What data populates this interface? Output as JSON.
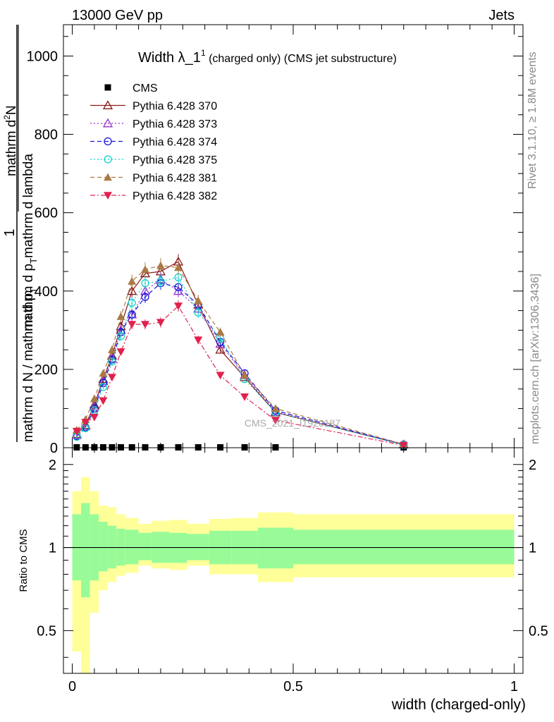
{
  "header": {
    "left_label": "13000 GeV pp",
    "right_label": "Jets",
    "rivet_label": "Rivet 3.1.10, ≥ 1.8M events",
    "site_label": "mcplots.cern.ch [arXiv:1306.3436]",
    "watermark": "CMS_2021_I1920187"
  },
  "title": {
    "main": "Width λ_1",
    "superscript": "1",
    "sub": " (charged only) (CMS jet substructure)"
  },
  "colors": {
    "CMS": "#000000",
    "370": "#8b1a1a",
    "373": "#9932cc",
    "374": "#1515d8",
    "375": "#14d2c8",
    "381": "#aa7a44",
    "382": "#e0204e",
    "band_inner": "#98fb98",
    "band_outer": "#ffff99"
  },
  "chart_data": [
    {
      "type": "line",
      "panel": "main",
      "ylabel": {
        "numerator": "1",
        "denominator": "mathrm d N / mathrm d p",
        "denominator_sub": "T",
        "right_part_main": "mathrm d",
        "right_part_sub": "T",
        "right_part_rest": "mathrm d lambda",
        "right_numerator": "mathrm d",
        "right_numerator_sup": "2",
        "right_numerator_rest": "N",
        "line1": "mathrm d",
        "line1_rest": "N",
        "line2_main": "mathrm d p",
        "line2_sub": "T",
        "line2_rest": "mathrm d lambda"
      },
      "xlim": [
        -0.02,
        1.02
      ],
      "ylim": [
        0,
        1080
      ],
      "yticks": [
        0,
        200,
        400,
        600,
        800,
        1000
      ],
      "ytick_labels": [
        "0",
        "200",
        "400",
        "600",
        "800",
        "1000"
      ],
      "series": [
        {
          "name": "CMS",
          "key": "CMS",
          "marker": "square",
          "x": [
            0.01,
            0.03,
            0.05,
            0.07,
            0.09,
            0.11,
            0.135,
            0.165,
            0.2,
            0.24,
            0.285,
            0.335,
            0.39,
            0.46,
            0.75
          ],
          "y": [
            1,
            1,
            1,
            1,
            1,
            1,
            1,
            1,
            1,
            1,
            1,
            1,
            1,
            1,
            1
          ]
        },
        {
          "name": "Pythia 6.428 370",
          "key": "370",
          "marker": "triangle-up-open",
          "dash": "",
          "x": [
            0.01,
            0.03,
            0.05,
            0.07,
            0.09,
            0.11,
            0.135,
            0.165,
            0.2,
            0.24,
            0.285,
            0.335,
            0.39,
            0.46,
            0.75
          ],
          "y": [
            35,
            58,
            110,
            175,
            235,
            310,
            400,
            445,
            450,
            475,
            365,
            250,
            180,
            90,
            8
          ]
        },
        {
          "name": "Pythia 6.428 373",
          "key": "373",
          "marker": "triangle-up-open",
          "dash": "2,3",
          "x": [
            0.01,
            0.03,
            0.05,
            0.07,
            0.09,
            0.11,
            0.135,
            0.165,
            0.2,
            0.24,
            0.285,
            0.335,
            0.39,
            0.46,
            0.75
          ],
          "y": [
            32,
            55,
            105,
            170,
            228,
            300,
            340,
            400,
            430,
            400,
            355,
            265,
            185,
            92,
            8
          ]
        },
        {
          "name": "Pythia 6.428 374",
          "key": "374",
          "marker": "circle-open",
          "dash": "6,4",
          "x": [
            0.01,
            0.03,
            0.05,
            0.07,
            0.09,
            0.11,
            0.135,
            0.165,
            0.2,
            0.24,
            0.285,
            0.335,
            0.39,
            0.46,
            0.75
          ],
          "y": [
            30,
            52,
            100,
            165,
            225,
            295,
            340,
            385,
            420,
            410,
            365,
            270,
            190,
            95,
            8
          ]
        },
        {
          "name": "Pythia 6.428 375",
          "key": "375",
          "marker": "circle-open",
          "dash": "2,3",
          "x": [
            0.01,
            0.03,
            0.05,
            0.07,
            0.09,
            0.11,
            0.135,
            0.165,
            0.2,
            0.24,
            0.285,
            0.335,
            0.39,
            0.46,
            0.75
          ],
          "y": [
            28,
            50,
            95,
            155,
            220,
            285,
            370,
            420,
            425,
            435,
            345,
            280,
            175,
            90,
            7
          ]
        },
        {
          "name": "Pythia 6.428 381",
          "key": "381",
          "marker": "triangle-up-filled",
          "dash": "6,4",
          "x": [
            0.01,
            0.03,
            0.05,
            0.07,
            0.09,
            0.11,
            0.135,
            0.165,
            0.2,
            0.24,
            0.285,
            0.335,
            0.39,
            0.46,
            0.75
          ],
          "y": [
            45,
            72,
            125,
            190,
            250,
            335,
            425,
            455,
            465,
            460,
            375,
            295,
            185,
            100,
            9
          ]
        },
        {
          "name": "Pythia 6.428 382",
          "key": "382",
          "marker": "triangle-down-filled",
          "dash": "7,3,2,3",
          "x": [
            0.01,
            0.03,
            0.05,
            0.07,
            0.09,
            0.11,
            0.135,
            0.165,
            0.2,
            0.24,
            0.285,
            0.335,
            0.39,
            0.46,
            0.75
          ],
          "y": [
            42,
            65,
            78,
            120,
            180,
            245,
            315,
            315,
            320,
            362,
            275,
            185,
            130,
            70,
            6
          ]
        }
      ]
    },
    {
      "type": "area",
      "panel": "ratio",
      "ylabel": "Ratio to CMS",
      "xlabel": "width (charged-only)",
      "xlim": [
        -0.02,
        1.02
      ],
      "ylim": [
        0.35,
        2.3
      ],
      "log_scale": true,
      "yticks": [
        0.5,
        1,
        2
      ],
      "ytick_labels": [
        "0.5",
        "1",
        "2"
      ],
      "xticks": [
        0,
        0.5,
        1
      ],
      "xtick_labels": [
        "0",
        "0.5",
        "1"
      ],
      "bins": [
        {
          "x0": 0.0,
          "x1": 0.02,
          "inner": [
            0.76,
            1.32
          ],
          "outer": [
            0.42,
            1.6
          ]
        },
        {
          "x0": 0.02,
          "x1": 0.04,
          "inner": [
            0.66,
            1.45
          ],
          "outer": [
            0.34,
            1.8
          ]
        },
        {
          "x0": 0.04,
          "x1": 0.06,
          "inner": [
            0.76,
            1.32
          ],
          "outer": [
            0.58,
            1.6
          ]
        },
        {
          "x0": 0.06,
          "x1": 0.08,
          "inner": [
            0.82,
            1.24
          ],
          "outer": [
            0.7,
            1.42
          ]
        },
        {
          "x0": 0.08,
          "x1": 0.1,
          "inner": [
            0.84,
            1.2
          ],
          "outer": [
            0.75,
            1.4
          ]
        },
        {
          "x0": 0.1,
          "x1": 0.12,
          "inner": [
            0.86,
            1.17
          ],
          "outer": [
            0.79,
            1.32
          ]
        },
        {
          "x0": 0.12,
          "x1": 0.15,
          "inner": [
            0.87,
            1.16
          ],
          "outer": [
            0.81,
            1.28
          ]
        },
        {
          "x0": 0.15,
          "x1": 0.18,
          "inner": [
            0.9,
            1.13
          ],
          "outer": [
            0.86,
            1.22
          ]
        },
        {
          "x0": 0.18,
          "x1": 0.22,
          "inner": [
            0.88,
            1.14
          ],
          "outer": [
            0.84,
            1.25
          ]
        },
        {
          "x0": 0.22,
          "x1": 0.26,
          "inner": [
            0.88,
            1.13
          ],
          "outer": [
            0.83,
            1.26
          ]
        },
        {
          "x0": 0.26,
          "x1": 0.31,
          "inner": [
            0.9,
            1.12
          ],
          "outer": [
            0.86,
            1.22
          ]
        },
        {
          "x0": 0.31,
          "x1": 0.36,
          "inner": [
            0.87,
            1.15
          ],
          "outer": [
            0.8,
            1.27
          ]
        },
        {
          "x0": 0.36,
          "x1": 0.42,
          "inner": [
            0.87,
            1.15
          ],
          "outer": [
            0.8,
            1.28
          ]
        },
        {
          "x0": 0.42,
          "x1": 0.5,
          "inner": [
            0.84,
            1.18
          ],
          "outer": [
            0.75,
            1.34
          ]
        },
        {
          "x0": 0.5,
          "x1": 1.0,
          "inner": [
            0.87,
            1.16
          ],
          "outer": [
            0.78,
            1.32
          ]
        }
      ],
      "reference": 1
    }
  ]
}
